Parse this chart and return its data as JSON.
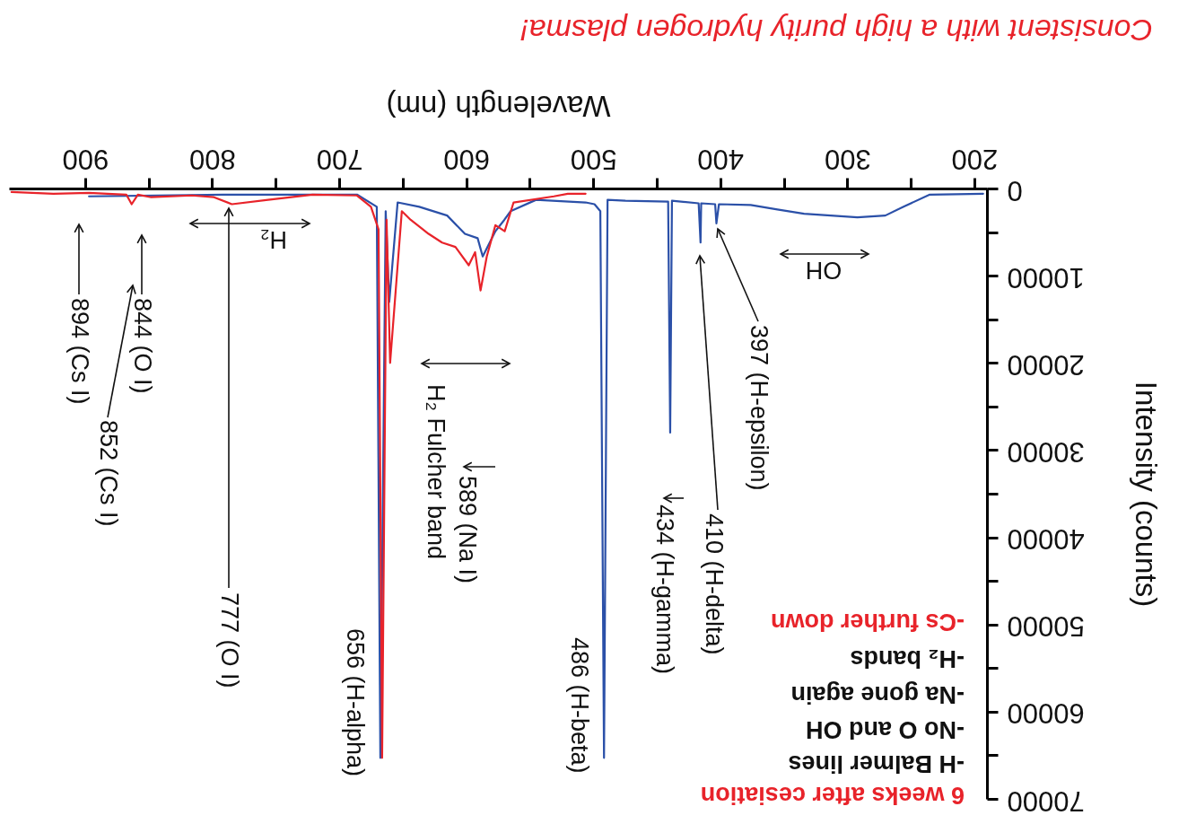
{
  "chart_data": {
    "type": "line",
    "title": "Consistent with a high purity hydrogen plasma!",
    "xlabel": "Wavelength (nm)",
    "ylabel": "Intensity (counts)",
    "xlim": [
      960,
      190
    ],
    "xticks": [
      200,
      {
        "value": 250,
        "label": null
      },
      300,
      {
        "value": 350,
        "label": null
      },
      400,
      {
        "value": 450,
        "label": null
      },
      500,
      {
        "value": 550,
        "label": null
      },
      600,
      {
        "value": 650,
        "label": null
      },
      700,
      {
        "value": 750,
        "label": null
      },
      800,
      {
        "value": 850,
        "label": null
      },
      900
    ],
    "ylim": [
      70000,
      0
    ],
    "yticks": [
      0,
      {
        "value": 5000,
        "label": null
      },
      10000,
      {
        "value": 15000,
        "label": null
      },
      20000,
      {
        "value": 25000,
        "label": null
      },
      30000,
      {
        "value": 35000,
        "label": null
      },
      40000,
      {
        "value": 45000,
        "label": null
      },
      50000,
      {
        "value": 55000,
        "label": null
      },
      60000,
      {
        "value": 65000,
        "label": null
      },
      70000
    ],
    "grid": false,
    "line_style": "solid",
    "series": [
      {
        "color": "#2b50a8",
        "x": [
          193,
          235,
          256,
          270,
          292,
          313,
          334,
          355,
          376,
          401,
          403,
          404,
          415,
          415.5,
          417,
          438,
          439.4,
          441,
          474.6,
          488.7,
          491.5,
          494.4,
          499,
          506,
          545,
          565,
          570,
          577,
          587,
          591,
          601,
          615,
          637,
          654,
          660.6,
          663.4,
          667.6,
          670.4,
          686,
          791.5,
          897
        ],
        "values": [
          600,
          700,
          2100,
          3100,
          3300,
          3100,
          2900,
          2400,
          1900,
          1800,
          4000,
          1800,
          1700,
          6200,
          1700,
          1400,
          28000,
          1500,
          1400,
          1300,
          65300,
          2600,
          1800,
          1600,
          1300,
          2600,
          3600,
          4900,
          7800,
          5700,
          5200,
          3100,
          2100,
          1600,
          13000,
          2600,
          65300,
          2100,
          700,
          700,
          900
        ]
      },
      {
        "color": "#e8232a",
        "x": [
          506,
          520,
          531,
          562.7,
          569.7,
          577,
          583.8,
          588.7,
          593,
          598,
          608.5,
          619,
          629.6,
          643.7,
          650.7,
          659.9,
          662.7,
          666.2,
          669,
          675,
          686,
          721,
          756,
          784.5,
          798.6,
          816,
          848,
          858.5,
          863.4,
          867.6,
          897,
          925,
          958
        ],
        "values": [
          600,
          600,
          900,
          1600,
          4900,
          4200,
          7800,
          11700,
          7300,
          8800,
          6700,
          6200,
          5200,
          3600,
          2600,
          20000,
          3600,
          65300,
          4700,
          2100,
          800,
          700,
          1300,
          1800,
          1000,
          800,
          1000,
          700,
          1800,
          700,
          500,
          600,
          400
        ]
      }
    ],
    "annotations": [
      "6 weeks after cesiation",
      "-H Balmer lines",
      "-No O and OH",
      "-Na gone again",
      "-H₂ bands",
      "-Cs further down",
      "894 (Cs I)",
      "852 (Cs I)",
      "844 (O I)",
      "777 (O I)",
      "656 (H-alpha)",
      "H₂ Fulcher band",
      "589 (Na I)",
      "486 (H-beta)",
      "434 (H-gamma)",
      "410 (H-delta)",
      "397 (H-epsilon)",
      "OH",
      "H₂"
    ]
  }
}
